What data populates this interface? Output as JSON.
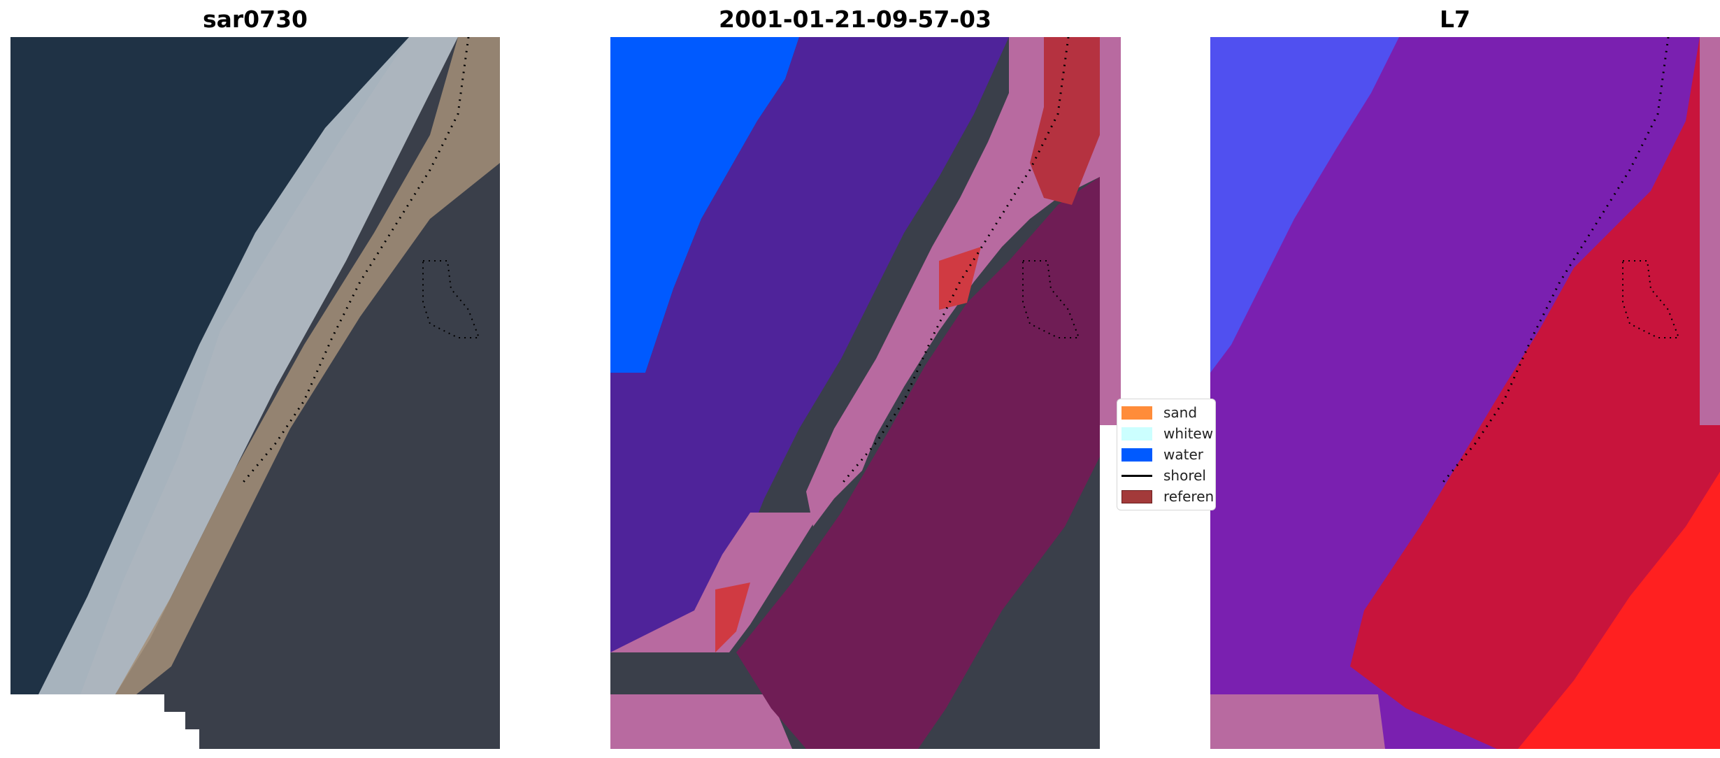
{
  "panels": [
    {
      "title": "sar0730"
    },
    {
      "title": "2001-01-21-09-57-03"
    },
    {
      "title": "L7"
    }
  ],
  "legend": {
    "items": [
      {
        "label": "sand",
        "color": "#ff8c3a"
      },
      {
        "label": "whitew",
        "color": "#ccffff"
      },
      {
        "label": "water",
        "color": "#005aff"
      },
      {
        "label": "shorel",
        "color": "#000000"
      },
      {
        "label": "referen",
        "color": "#a33a3a"
      }
    ]
  },
  "colors": {
    "ocean": "#1f3245",
    "land": "#3a3f4a",
    "whitewater": "#c9d3db",
    "beach": "#a48f78",
    "class_water": "#005aff",
    "class_sea": "#4f239a",
    "class_pink": "#b86aa0",
    "class_dark": "#6f1d55",
    "class_red": "#b53240",
    "l7_blue": "#5050f0",
    "l7_purple": "#7a20b0",
    "l7_red": "#c8143c",
    "l7_bright": "#ff2020"
  }
}
